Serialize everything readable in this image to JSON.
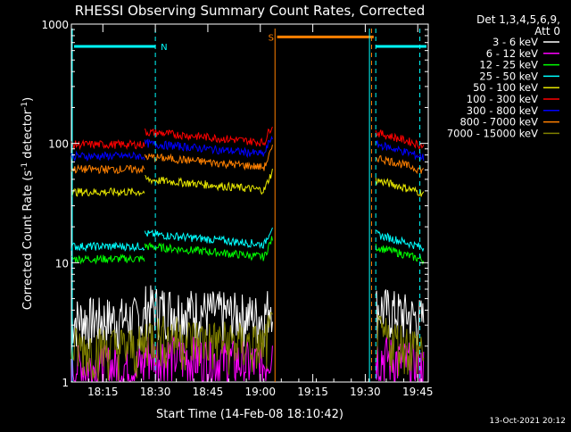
{
  "chart_data": {
    "type": "line",
    "title": "RHESSI Observing Summary Count Rates, Corrected",
    "xlabel": "Start Time (14-Feb-08 18:10:42)",
    "ylabel_main": "Corrected Count Rate (s",
    "ylabel_sup1": "-1",
    "ylabel_mid": " detector",
    "ylabel_sup2": "-1",
    "ylabel_end": ")",
    "yscale": "log",
    "ylim": [
      1,
      1000
    ],
    "xlim_minutes": [
      18.1,
      19.8
    ],
    "x_tick_labels": [
      "18:15",
      "18:30",
      "18:45",
      "19:00",
      "19:15",
      "19:30",
      "19:45"
    ],
    "y_tick_labels": [
      "1",
      "10",
      "100",
      "1000"
    ],
    "legend_title_1": "Det 1,3,4,5,6,9,",
    "legend_title_2": "Att 0",
    "footer_date": "13-Oct-2021 20:12",
    "flags": [
      {
        "label": "N",
        "color": "#00ffff"
      },
      {
        "label": "S",
        "color": "#ff8000"
      }
    ],
    "series": [
      {
        "name": "3 - 6 keV",
        "color": "#ffffff",
        "level": 3.5
      },
      {
        "name": "6 - 12 keV",
        "color": "#ff00ff",
        "level": 1.4
      },
      {
        "name": "12 - 25 keV",
        "color": "#00ff00",
        "level": 11
      },
      {
        "name": "25 - 50 keV",
        "color": "#00ffff",
        "level": 14
      },
      {
        "name": "50 - 100 keV",
        "color": "#e6e600",
        "level": 40
      },
      {
        "name": "100 - 300 keV",
        "color": "#ff0000",
        "level": 100
      },
      {
        "name": "300 - 800 keV",
        "color": "#0000ff",
        "level": 80
      },
      {
        "name": "800 - 7000 keV",
        "color": "#ff8000",
        "level": 62
      },
      {
        "name": "7000 - 15000 keV",
        "color": "#808000",
        "level": 2
      }
    ]
  }
}
